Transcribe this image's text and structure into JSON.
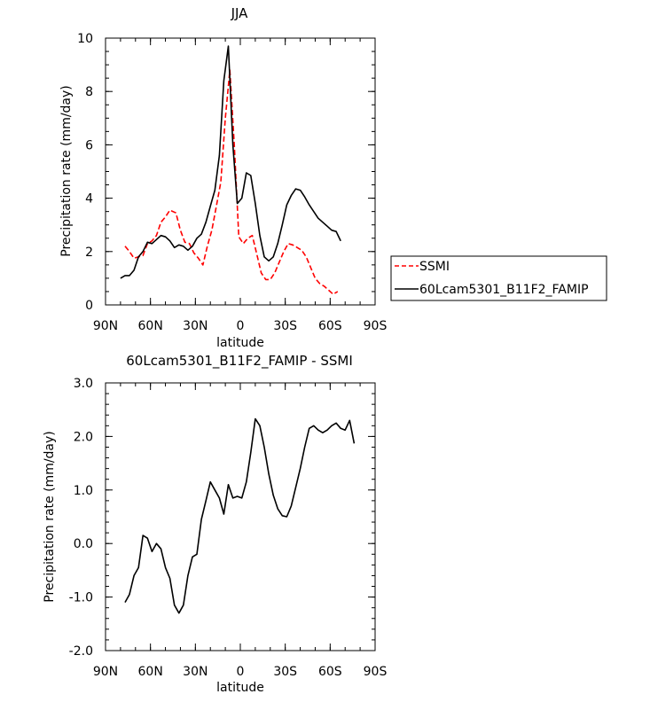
{
  "chart_data": [
    {
      "type": "line",
      "title": "JJA",
      "xlabel": "latitude",
      "ylabel": "Precipitation rate (mm/day)",
      "xlim": [
        90,
        -90
      ],
      "ylim": [
        0,
        10
      ],
      "x_tick_values": [
        90,
        60,
        30,
        0,
        -30,
        -60,
        -90
      ],
      "x_tick_labels": [
        "90N",
        "60N",
        "30N",
        "0",
        "30S",
        "60S",
        "90S"
      ],
      "y_tick_values": [
        0,
        2,
        4,
        6,
        8,
        10
      ],
      "y_tick_labels": [
        "0",
        "2",
        "4",
        "6",
        "8",
        "10"
      ],
      "legend": {
        "position": "right"
      },
      "series": [
        {
          "name": "SSMI",
          "color": "#ff0000",
          "dash": "dashed",
          "points": [
            [
              77,
              2.2
            ],
            [
              74,
              2.0
            ],
            [
              71,
              1.75
            ],
            [
              68,
              1.8
            ],
            [
              65,
              1.85
            ],
            [
              62,
              2.3
            ],
            [
              59,
              2.4
            ],
            [
              56,
              2.6
            ],
            [
              53,
              3.1
            ],
            [
              50,
              3.3
            ],
            [
              47,
              3.55
            ],
            [
              43,
              3.45
            ],
            [
              40,
              2.8
            ],
            [
              37,
              2.35
            ],
            [
              34,
              2.3
            ],
            [
              31,
              1.95
            ],
            [
              28,
              1.75
            ],
            [
              25,
              1.5
            ],
            [
              22,
              2.2
            ],
            [
              19,
              2.8
            ],
            [
              16,
              3.7
            ],
            [
              13,
              4.6
            ],
            [
              10,
              7.0
            ],
            [
              7,
              8.8
            ],
            [
              4,
              6.0
            ],
            [
              1,
              2.55
            ],
            [
              -2,
              2.3
            ],
            [
              -5,
              2.5
            ],
            [
              -8,
              2.6
            ],
            [
              -11,
              1.9
            ],
            [
              -14,
              1.2
            ],
            [
              -17,
              0.95
            ],
            [
              -20,
              0.95
            ],
            [
              -23,
              1.2
            ],
            [
              -26,
              1.6
            ],
            [
              -29,
              2.0
            ],
            [
              -32,
              2.3
            ],
            [
              -35,
              2.25
            ],
            [
              -38,
              2.15
            ],
            [
              -41,
              2.05
            ],
            [
              -44,
              1.8
            ],
            [
              -47,
              1.4
            ],
            [
              -50,
              1.0
            ],
            [
              -53,
              0.8
            ],
            [
              -56,
              0.7
            ],
            [
              -59,
              0.55
            ],
            [
              -62,
              0.4
            ],
            [
              -65,
              0.5
            ]
          ]
        },
        {
          "name": "60Lcam5301_B11F2_FAMIP",
          "color": "#000000",
          "dash": "solid",
          "points": [
            [
              80,
              1.0
            ],
            [
              77,
              1.1
            ],
            [
              74,
              1.1
            ],
            [
              71,
              1.3
            ],
            [
              68,
              1.8
            ],
            [
              65,
              2.0
            ],
            [
              62,
              2.35
            ],
            [
              59,
              2.3
            ],
            [
              56,
              2.45
            ],
            [
              53,
              2.6
            ],
            [
              50,
              2.55
            ],
            [
              47,
              2.4
            ],
            [
              44,
              2.15
            ],
            [
              41,
              2.25
            ],
            [
              38,
              2.2
            ],
            [
              35,
              2.05
            ],
            [
              32,
              2.2
            ],
            [
              29,
              2.5
            ],
            [
              26,
              2.65
            ],
            [
              23,
              3.1
            ],
            [
              20,
              3.7
            ],
            [
              17,
              4.3
            ],
            [
              14,
              5.6
            ],
            [
              11,
              8.4
            ],
            [
              8,
              9.7
            ],
            [
              5,
              6.0
            ],
            [
              2,
              3.8
            ],
            [
              -1,
              4.0
            ],
            [
              -4,
              4.95
            ],
            [
              -7,
              4.85
            ],
            [
              -10,
              3.8
            ],
            [
              -13,
              2.6
            ],
            [
              -16,
              1.8
            ],
            [
              -19,
              1.65
            ],
            [
              -22,
              1.8
            ],
            [
              -25,
              2.3
            ],
            [
              -28,
              3.0
            ],
            [
              -31,
              3.75
            ],
            [
              -34,
              4.1
            ],
            [
              -37,
              4.35
            ],
            [
              -40,
              4.3
            ],
            [
              -43,
              4.05
            ],
            [
              -46,
              3.75
            ],
            [
              -49,
              3.5
            ],
            [
              -52,
              3.25
            ],
            [
              -55,
              3.1
            ],
            [
              -58,
              2.95
            ],
            [
              -61,
              2.8
            ],
            [
              -64,
              2.75
            ],
            [
              -67,
              2.4
            ]
          ]
        }
      ]
    },
    {
      "type": "line",
      "title": "60Lcam5301_B11F2_FAMIP - SSMI",
      "xlabel": "latitude",
      "ylabel": "Precipitation rate (mm/day)",
      "xlim": [
        90,
        -90
      ],
      "ylim": [
        -2,
        3
      ],
      "x_tick_values": [
        90,
        60,
        30,
        0,
        -30,
        -60,
        -90
      ],
      "x_tick_labels": [
        "90N",
        "60N",
        "30N",
        "0",
        "30S",
        "60S",
        "90S"
      ],
      "y_tick_values": [
        -2,
        -1,
        0,
        1,
        2,
        3
      ],
      "y_tick_labels": [
        "-2.0",
        "-1.0",
        "0.0",
        "1.0",
        "2.0",
        "3.0"
      ],
      "series": [
        {
          "color": "#000000",
          "dash": "solid",
          "points": [
            [
              77,
              -1.1
            ],
            [
              74,
              -0.95
            ],
            [
              71,
              -0.6
            ],
            [
              68,
              -0.45
            ],
            [
              65,
              0.15
            ],
            [
              62,
              0.1
            ],
            [
              59,
              -0.15
            ],
            [
              56,
              0.0
            ],
            [
              53,
              -0.1
            ],
            [
              50,
              -0.45
            ],
            [
              47,
              -0.65
            ],
            [
              44,
              -1.15
            ],
            [
              41,
              -1.3
            ],
            [
              38,
              -1.15
            ],
            [
              35,
              -0.6
            ],
            [
              32,
              -0.25
            ],
            [
              29,
              -0.2
            ],
            [
              26,
              0.45
            ],
            [
              23,
              0.8
            ],
            [
              20,
              1.15
            ],
            [
              17,
              1.0
            ],
            [
              14,
              0.85
            ],
            [
              11,
              0.55
            ],
            [
              8,
              1.1
            ],
            [
              5,
              0.85
            ],
            [
              2,
              0.88
            ],
            [
              -1,
              0.85
            ],
            [
              -4,
              1.15
            ],
            [
              -7,
              1.7
            ],
            [
              -10,
              2.33
            ],
            [
              -13,
              2.2
            ],
            [
              -16,
              1.8
            ],
            [
              -19,
              1.3
            ],
            [
              -22,
              0.9
            ],
            [
              -25,
              0.65
            ],
            [
              -28,
              0.52
            ],
            [
              -31,
              0.5
            ],
            [
              -34,
              0.7
            ],
            [
              -37,
              1.05
            ],
            [
              -40,
              1.4
            ],
            [
              -43,
              1.8
            ],
            [
              -46,
              2.15
            ],
            [
              -49,
              2.2
            ],
            [
              -52,
              2.12
            ],
            [
              -55,
              2.07
            ],
            [
              -58,
              2.12
            ],
            [
              -61,
              2.2
            ],
            [
              -64,
              2.25
            ],
            [
              -67,
              2.15
            ],
            [
              -70,
              2.12
            ],
            [
              -73,
              2.3
            ],
            [
              -76,
              1.87
            ]
          ]
        }
      ]
    }
  ]
}
